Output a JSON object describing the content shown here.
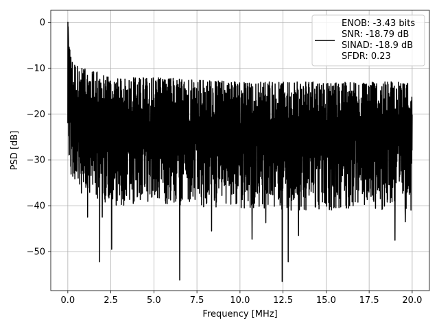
{
  "chart_data": {
    "type": "line",
    "xlabel": "Frequency [MHz]",
    "ylabel": "PSD [dB]",
    "xlim": [
      -0.99,
      21.0
    ],
    "ylim": [
      -58.5,
      2.6
    ],
    "x_ticks": [
      0.0,
      2.5,
      5.0,
      7.5,
      10.0,
      12.5,
      15.0,
      17.5,
      20.0
    ],
    "x_tick_labels": [
      "0.0",
      "2.5",
      "5.0",
      "7.5",
      "10.0",
      "12.5",
      "15.0",
      "17.5",
      "20.0"
    ],
    "y_ticks": [
      0,
      -10,
      -20,
      -30,
      -40,
      -50
    ],
    "y_tick_labels": [
      "0",
      "−10",
      "−20",
      "−30",
      "−40",
      "−50"
    ],
    "grid": true,
    "legend_position": "top-right",
    "series_color": "#000000",
    "legend_lines": [
      "ENOB: -3.43 bits",
      "SNR: -18.79 dB",
      "SINAD: -18.9 dB",
      "SFDR: 0.23"
    ],
    "series": [
      {
        "x_range": [
          0.0,
          20.0
        ],
        "peaks": [
          {
            "x": 0.0,
            "y": 0.0
          },
          {
            "x": 0.1,
            "y": -4
          },
          {
            "x": 0.2,
            "y": -8
          },
          {
            "x": 0.4,
            "y": -9
          },
          {
            "x": 0.8,
            "y": -10
          },
          {
            "x": 2.0,
            "y": -11
          },
          {
            "x": 2.5,
            "y": -12
          },
          {
            "x": 5.0,
            "y": -12
          },
          {
            "x": 10.0,
            "y": -13
          },
          {
            "x": 15.0,
            "y": -13
          },
          {
            "x": 20.0,
            "y": -13
          }
        ],
        "deep_dips": [
          {
            "x": 0.35,
            "y": -30.5
          },
          {
            "x": 0.6,
            "y": -34
          },
          {
            "x": 1.15,
            "y": -42.5
          },
          {
            "x": 1.85,
            "y": -52.2
          },
          {
            "x": 2.0,
            "y": -42.5
          },
          {
            "x": 2.55,
            "y": -49.5
          },
          {
            "x": 3.8,
            "y": -39.5
          },
          {
            "x": 6.5,
            "y": -56.2
          },
          {
            "x": 8.35,
            "y": -45.5
          },
          {
            "x": 10.7,
            "y": -47.3
          },
          {
            "x": 11.5,
            "y": -43.7
          },
          {
            "x": 12.45,
            "y": -56.5
          },
          {
            "x": 12.8,
            "y": -52.2
          },
          {
            "x": 13.4,
            "y": -46.5
          },
          {
            "x": 15.5,
            "y": -38.0
          },
          {
            "x": 19.0,
            "y": -47.5
          },
          {
            "x": 19.6,
            "y": -43.5
          }
        ]
      }
    ]
  }
}
